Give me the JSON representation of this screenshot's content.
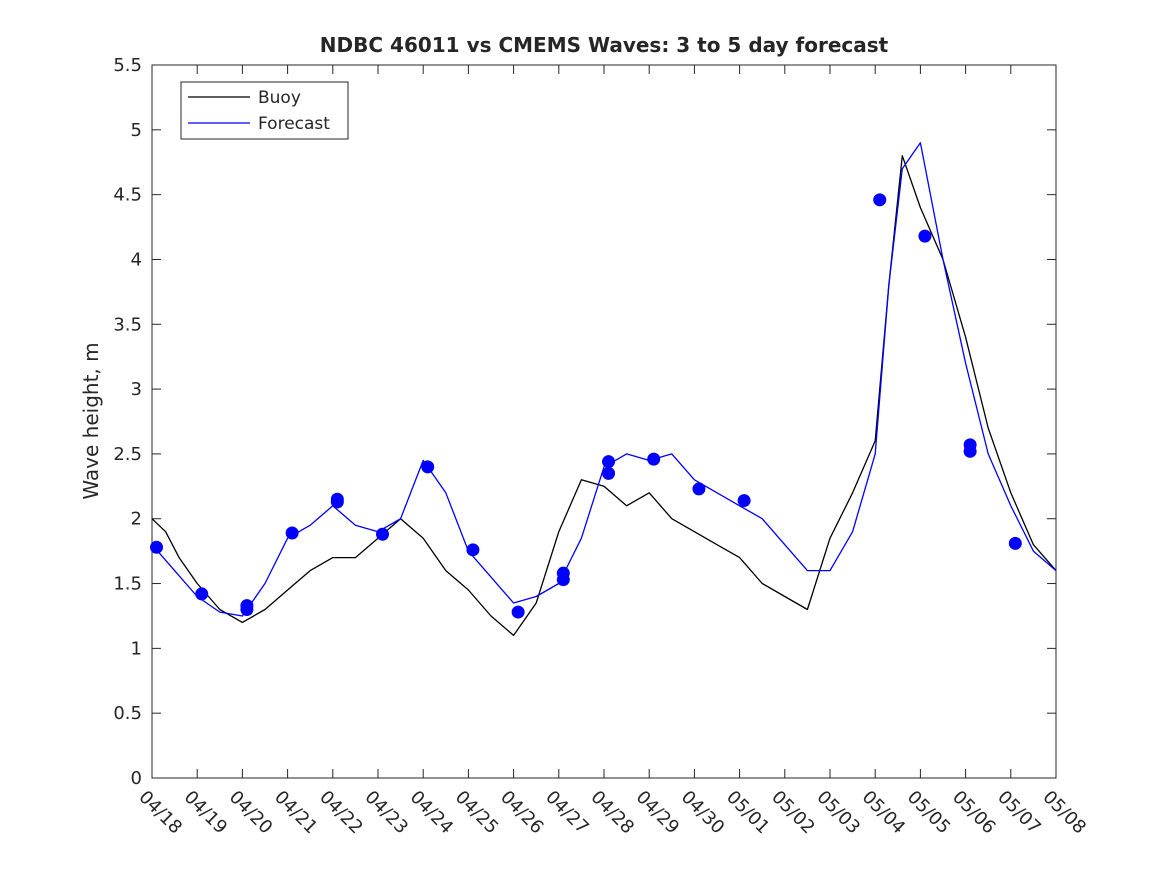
{
  "chart_data": {
    "type": "line",
    "title": "NDBC 46011 vs CMEMS Waves: 3 to 5 day forecast",
    "xlabel": "",
    "ylabel": "Wave height, m",
    "xlim": [
      "04/18",
      "05/08"
    ],
    "ylim": [
      0,
      5.5
    ],
    "y_ticks": [
      "0",
      "0.5",
      "1",
      "1.5",
      "2",
      "2.5",
      "3",
      "3.5",
      "4",
      "4.5",
      "5",
      "5.5"
    ],
    "x_ticks": [
      "04/18",
      "04/19",
      "04/20",
      "04/21",
      "04/22",
      "04/23",
      "04/24",
      "04/25",
      "04/26",
      "04/27",
      "04/28",
      "04/29",
      "04/30",
      "05/01",
      "05/02",
      "05/03",
      "05/04",
      "05/05",
      "05/06",
      "05/07",
      "05/08"
    ],
    "grid": false,
    "legend": {
      "position": "top-left",
      "entries": [
        "Buoy",
        "Forecast"
      ]
    },
    "colors": {
      "buoy": "#000000",
      "forecast": "#0000ff",
      "axis": "#262626"
    },
    "series": [
      {
        "name": "Buoy",
        "color": "#000000",
        "x": [
          0.0,
          0.3,
          0.6,
          1.0,
          1.5,
          2.0,
          2.5,
          3.0,
          3.5,
          4.0,
          4.5,
          5.0,
          5.5,
          6.0,
          6.5,
          7.0,
          7.5,
          8.0,
          8.5,
          9.0,
          9.5,
          10.0,
          10.5,
          11.0,
          11.5,
          12.0,
          12.5,
          13.0,
          13.5,
          14.0,
          14.5,
          15.0,
          15.5,
          16.0,
          16.3,
          16.6,
          17.0,
          17.5,
          18.0,
          18.5,
          19.0,
          19.5,
          20.0
        ],
        "y": [
          2.0,
          1.9,
          1.7,
          1.5,
          1.3,
          1.2,
          1.3,
          1.45,
          1.6,
          1.7,
          1.7,
          1.85,
          2.0,
          1.85,
          1.6,
          1.45,
          1.25,
          1.1,
          1.35,
          1.9,
          2.3,
          2.25,
          2.1,
          2.2,
          2.0,
          1.9,
          1.8,
          1.7,
          1.5,
          1.4,
          1.3,
          1.85,
          2.2,
          2.6,
          3.8,
          4.8,
          4.4,
          4.0,
          3.4,
          2.7,
          2.2,
          1.8,
          1.6
        ]
      },
      {
        "name": "Forecast",
        "color": "#0000ff",
        "x": [
          0.0,
          0.5,
          1.0,
          1.5,
          2.0,
          2.5,
          3.0,
          3.5,
          4.0,
          4.5,
          5.0,
          5.5,
          6.0,
          6.5,
          7.0,
          7.5,
          8.0,
          8.5,
          9.0,
          9.5,
          10.0,
          10.5,
          11.0,
          11.5,
          12.0,
          12.5,
          13.0,
          13.5,
          14.0,
          14.5,
          15.0,
          15.5,
          16.0,
          16.3,
          16.6,
          17.0,
          17.5,
          18.0,
          18.5,
          19.0,
          19.5,
          20.0
        ],
        "y": [
          1.8,
          1.6,
          1.4,
          1.28,
          1.25,
          1.5,
          1.85,
          1.95,
          2.1,
          1.95,
          1.9,
          2.0,
          2.45,
          2.2,
          1.75,
          1.55,
          1.35,
          1.4,
          1.5,
          1.85,
          2.4,
          2.5,
          2.45,
          2.5,
          2.3,
          2.2,
          2.1,
          2.0,
          1.8,
          1.6,
          1.6,
          1.9,
          2.5,
          3.8,
          4.7,
          4.9,
          4.0,
          3.2,
          2.5,
          2.1,
          1.75,
          1.6
        ]
      }
    ],
    "markers": {
      "name": "Forecast",
      "x": [
        0.1,
        1.1,
        2.1,
        2.1,
        3.1,
        4.1,
        4.1,
        5.1,
        6.1,
        7.1,
        8.1,
        9.1,
        9.1,
        10.1,
        10.1,
        11.1,
        12.1,
        13.1,
        16.1,
        17.1,
        18.1,
        18.1,
        19.1
      ],
      "y": [
        1.78,
        1.42,
        1.3,
        1.33,
        1.89,
        2.15,
        2.13,
        1.88,
        2.4,
        1.76,
        1.28,
        1.53,
        1.58,
        2.35,
        2.44,
        2.46,
        2.23,
        2.14,
        4.46,
        4.18,
        2.57,
        2.52,
        1.81
      ]
    }
  }
}
